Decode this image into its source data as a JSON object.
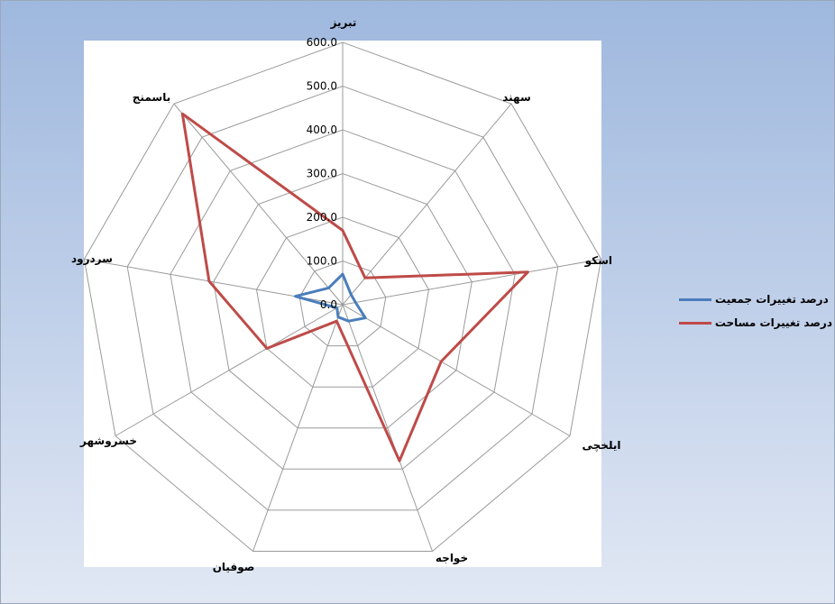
{
  "chart_data": {
    "type": "radar",
    "title": "",
    "categories": [
      "تبریز",
      "سهند",
      "اسکو",
      "ایلخچی",
      "خواجه",
      "صوفیان",
      "خسروشهر",
      "سردرود",
      "باسمنج"
    ],
    "tick_labels": [
      "0.0",
      "100.0",
      "200.0",
      "300.0",
      "400.0",
      "500.0",
      "600.0"
    ],
    "rlim": [
      0,
      600
    ],
    "grid": true,
    "legend_position": "right",
    "series": [
      {
        "name": "درصد تغییرات جمعیت",
        "color": "#4a7ebb",
        "values": [
          70,
          30,
          30,
          60,
          40,
          30,
          15,
          110,
          50
        ]
      },
      {
        "name": "درصد تغییرات مساحت",
        "color": "#be4b48",
        "values": [
          170,
          80,
          430,
          260,
          380,
          40,
          200,
          310,
          570
        ]
      }
    ]
  },
  "legend": {
    "items": [
      {
        "label": "درصد تغییرات جمعیت",
        "color": "#4a7ebb"
      },
      {
        "label": "درصد تغییرات مساحت",
        "color": "#be4b48"
      }
    ]
  }
}
